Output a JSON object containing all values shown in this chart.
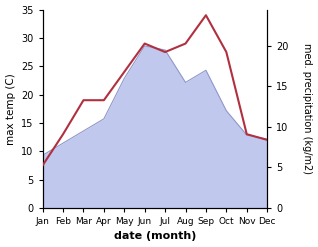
{
  "months": [
    "Jan",
    "Feb",
    "Mar",
    "Apr",
    "May",
    "Jun",
    "Jul",
    "Aug",
    "Sep",
    "Oct",
    "Nov",
    "Dec"
  ],
  "max_temp": [
    7.5,
    13.0,
    19.0,
    19.0,
    24.0,
    29.0,
    27.5,
    29.0,
    34.0,
    27.5,
    13.0,
    12.0
  ],
  "precipitation": [
    6.5,
    8.0,
    9.5,
    11.0,
    16.0,
    20.0,
    19.5,
    15.5,
    17.0,
    12.0,
    9.0,
    8.5
  ],
  "temp_color": "#b03040",
  "precip_fill_color": "#c0c8ee",
  "precip_line_color": "#9098c8",
  "temp_ylim": [
    0,
    35
  ],
  "precip_ylim": [
    0,
    24.5
  ],
  "temp_yticks": [
    0,
    5,
    10,
    15,
    20,
    25,
    30,
    35
  ],
  "precip_yticks": [
    0,
    5,
    10,
    15,
    20
  ],
  "xlabel": "date (month)",
  "ylabel_left": "max temp (C)",
  "ylabel_right": "med. precipitation (kg/m2)",
  "background_color": "#ffffff"
}
